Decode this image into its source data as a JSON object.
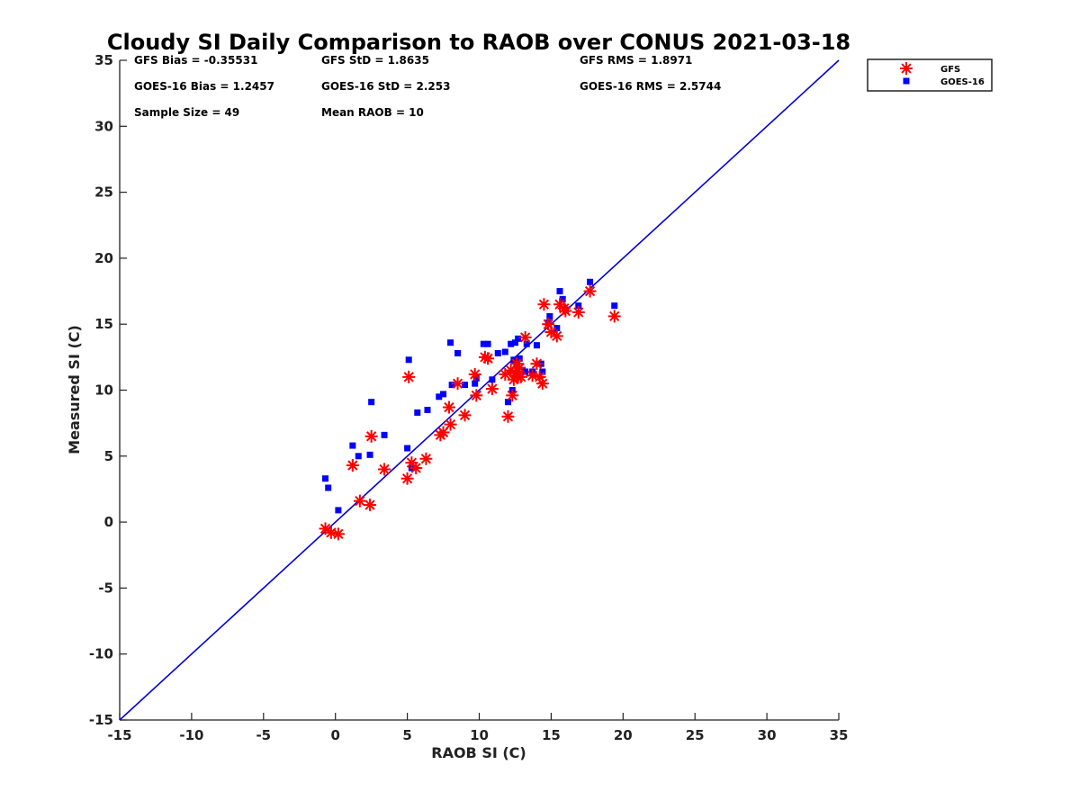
{
  "chart_data": {
    "type": "scatter",
    "title": "Cloudy SI Daily Comparison to RAOB over CONUS 2021-03-18",
    "xlabel": "RAOB SI (C)",
    "ylabel": "Measured SI (C)",
    "xlim": [
      -15,
      35
    ],
    "ylim": [
      -15,
      35
    ],
    "xticks": [
      -15,
      -10,
      -5,
      0,
      5,
      10,
      15,
      20,
      25,
      30,
      35
    ],
    "yticks": [
      -15,
      -10,
      -5,
      0,
      5,
      10,
      15,
      20,
      25,
      30,
      35
    ],
    "grid": false,
    "legend_position": "outside top-right",
    "reference_line": {
      "slope": 1,
      "intercept": 0,
      "color": "#0000dd"
    },
    "stats": [
      {
        "text": "GFS Bias = -0.35531"
      },
      {
        "text": "GFS StD = 1.8635"
      },
      {
        "text": "GFS RMS = 1.8971"
      },
      {
        "text": "GOES-16 Bias = 1.2457"
      },
      {
        "text": "GOES-16 StD = 2.253"
      },
      {
        "text": "GOES-16 RMS = 2.5744"
      },
      {
        "text": "Sample Size = 49"
      },
      {
        "text": "Mean RAOB = 10"
      }
    ],
    "series": [
      {
        "name": "GFS",
        "marker": "asterisk",
        "color": "#ff0000",
        "x": [
          -0.7,
          -0.3,
          0.2,
          1.2,
          1.7,
          2.4,
          2.5,
          3.4,
          5.0,
          5.1,
          5.3,
          5.6,
          6.3,
          7.3,
          7.5,
          7.9,
          8.0,
          8.5,
          9.0,
          9.7,
          9.8,
          10.4,
          10.6,
          10.9,
          11.8,
          12.0,
          12.2,
          12.3,
          12.4,
          12.5,
          12.6,
          12.7,
          12.8,
          12.9,
          13.2,
          13.7,
          14.0,
          14.2,
          14.4,
          14.5,
          14.8,
          15.0,
          15.4,
          15.6,
          15.9,
          16.0,
          16.9,
          17.7,
          19.4
        ],
        "y": [
          -0.5,
          -0.8,
          -0.9,
          4.3,
          1.6,
          1.3,
          6.5,
          4.0,
          3.3,
          11.0,
          4.5,
          4.1,
          4.8,
          6.6,
          6.8,
          8.7,
          7.4,
          10.5,
          8.1,
          11.2,
          9.6,
          12.5,
          12.4,
          10.1,
          11.2,
          8.0,
          11.5,
          9.6,
          10.8,
          11.3,
          12.0,
          11.0,
          11.7,
          11.0,
          14.0,
          11.1,
          12.0,
          11.0,
          10.5,
          16.5,
          15.0,
          14.4,
          14.1,
          16.5,
          16.2,
          16.0,
          15.9,
          17.5,
          15.6
        ]
      },
      {
        "name": "GOES-16",
        "marker": "square",
        "color": "#0000ff",
        "x": [
          -0.7,
          -0.5,
          0.2,
          1.2,
          1.6,
          2.4,
          2.5,
          3.4,
          5.0,
          5.1,
          5.3,
          5.7,
          6.4,
          7.2,
          7.5,
          8.0,
          8.1,
          8.5,
          9.0,
          9.7,
          9.8,
          10.3,
          10.6,
          10.9,
          11.3,
          11.8,
          12.0,
          12.2,
          12.3,
          12.4,
          12.5,
          12.6,
          12.7,
          12.8,
          13.2,
          13.3,
          13.7,
          14.0,
          14.3,
          14.4,
          14.8,
          14.9,
          15.4,
          15.6,
          15.8,
          16.0,
          16.9,
          17.7,
          19.4
        ],
        "y": [
          3.3,
          2.6,
          0.9,
          5.8,
          5.0,
          5.1,
          9.1,
          6.6,
          5.6,
          12.3,
          4.1,
          8.3,
          8.5,
          9.5,
          9.7,
          13.6,
          10.4,
          12.8,
          10.4,
          10.5,
          10.9,
          13.5,
          13.5,
          10.8,
          12.8,
          12.9,
          9.1,
          13.5,
          10.0,
          12.3,
          13.6,
          12.0,
          13.9,
          12.4,
          11.4,
          13.5,
          11.4,
          13.4,
          12.0,
          11.4,
          15.1,
          15.6,
          14.7,
          17.5,
          16.9,
          16.1,
          16.4,
          18.2,
          16.4
        ]
      }
    ]
  }
}
